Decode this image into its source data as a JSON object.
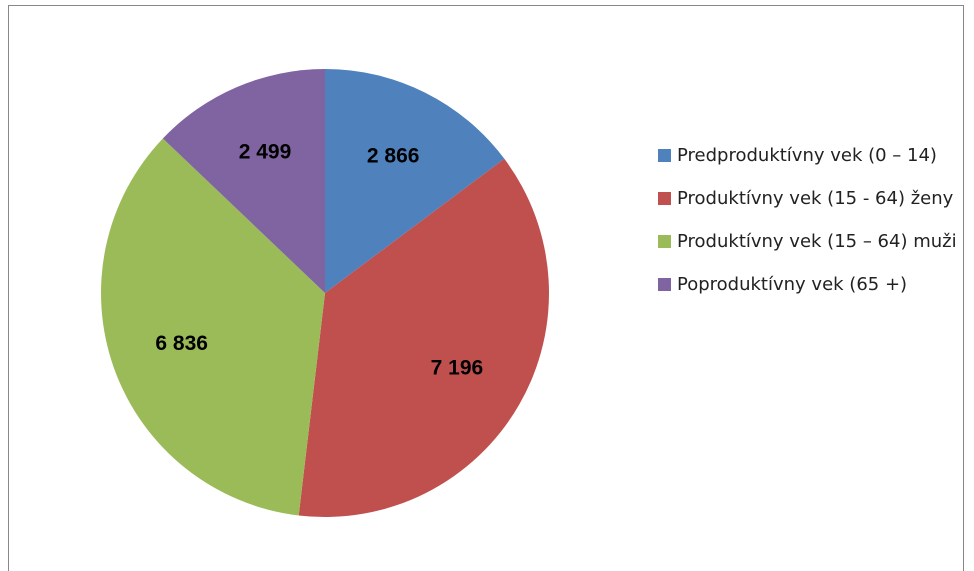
{
  "chart_data": {
    "type": "pie",
    "categories": [
      "Predproduktívny vek (0 – 14)",
      "Produktívny vek (15 - 64) ženy",
      "Produktívny vek (15 – 64) muži",
      "Poproduktívny vek (65 +)"
    ],
    "values": [
      2866,
      7196,
      6836,
      2499
    ],
    "value_labels": [
      "2 866",
      "7 196",
      "6 836",
      "2 499"
    ],
    "colors": [
      "#4f81bd",
      "#c0504d",
      "#9bbb59",
      "#8064a2"
    ],
    "legend": "right"
  }
}
